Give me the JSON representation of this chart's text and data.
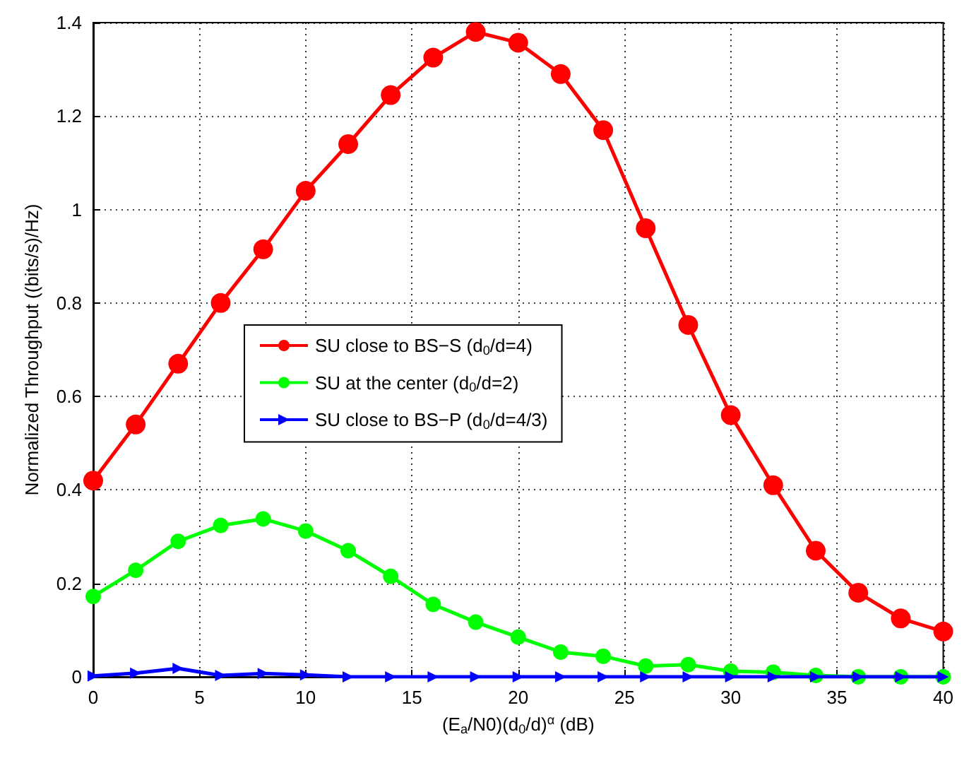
{
  "chart_data": {
    "type": "line",
    "xlabel": "(E$_{a}$/N0)(d$_{0}$/d)$^{α}$ (dB)",
    "ylabel": "Normalized Throughput ((bits/s)/Hz)",
    "x": [
      0,
      2,
      4,
      6,
      8,
      10,
      12,
      14,
      16,
      18,
      20,
      22,
      24,
      26,
      28,
      30,
      32,
      34,
      36,
      38,
      40
    ],
    "series": [
      {
        "name": "SU close to BS−S (d$_{0}$/d=4)",
        "color": "#ff0000",
        "marker": "circle",
        "values": [
          0.42,
          0.54,
          0.67,
          0.8,
          0.915,
          1.04,
          1.14,
          1.245,
          1.325,
          1.38,
          1.357,
          1.29,
          1.17,
          0.96,
          0.753,
          0.56,
          0.41,
          0.27,
          0.18,
          0.125,
          0.097
        ]
      },
      {
        "name": "SU at the center (d$_{0}$/d=2)",
        "color": "#00ff00",
        "marker": "circle",
        "values": [
          0.172,
          0.228,
          0.29,
          0.324,
          0.338,
          0.312,
          0.27,
          0.215,
          0.155,
          0.117,
          0.085,
          0.053,
          0.044,
          0.023,
          0.026,
          0.012,
          0.01,
          0.003,
          0,
          0,
          0
        ]
      },
      {
        "name": "SU close to BS−P (d$_{0}$/d=4/3)",
        "color": "#0000ff",
        "marker": "triangle",
        "values": [
          0.002,
          0.008,
          0.018,
          0.003,
          0.007,
          0.004,
          0,
          0,
          0,
          0,
          0,
          0,
          0,
          0,
          0,
          0,
          0,
          0,
          0,
          0,
          0
        ]
      }
    ],
    "xlim": [
      0,
      40
    ],
    "xticks": [
      0,
      5,
      10,
      15,
      20,
      25,
      30,
      35,
      40
    ],
    "ylim": [
      0,
      1.4
    ],
    "yticks": [
      0,
      0.2,
      0.4,
      0.6,
      0.8,
      1,
      1.2,
      1.4
    ],
    "grid": true,
    "legend": "center",
    "line_style": "solid"
  }
}
